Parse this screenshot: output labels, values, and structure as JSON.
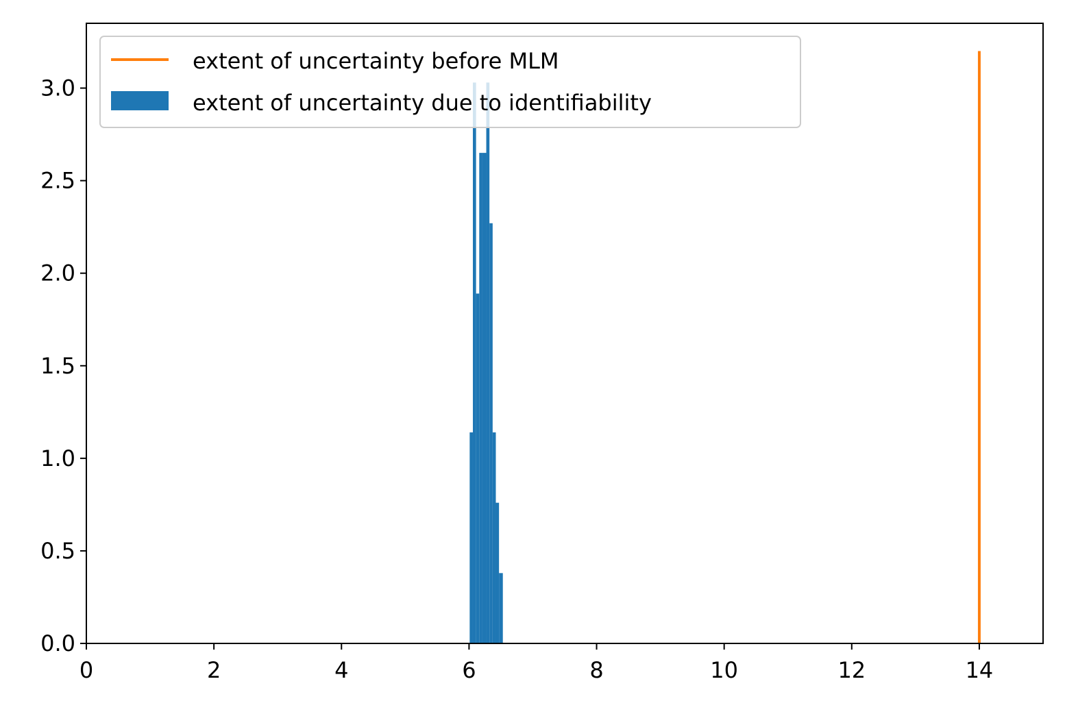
{
  "chart_data": {
    "type": "bar",
    "title": "",
    "xlabel": "",
    "ylabel": "",
    "xlim": [
      0,
      15
    ],
    "ylim": [
      0,
      3.35
    ],
    "grid": false,
    "legend_placement": "upper-left",
    "x_ticks": [
      0,
      2,
      4,
      6,
      8,
      10,
      12,
      14
    ],
    "x_tick_labels": [
      "0",
      "2",
      "4",
      "6",
      "8",
      "10",
      "12",
      "14"
    ],
    "y_ticks": [
      0,
      0.5,
      1.0,
      1.5,
      2.0,
      2.5,
      3.0
    ],
    "y_tick_labels": [
      "0.0",
      "0.5",
      "1.0",
      "1.5",
      "2.0",
      "2.5",
      "3.0"
    ],
    "series": [
      {
        "name": "extent of uncertainty before MLM",
        "kind": "vertical-line",
        "color": "#ff7f0e",
        "x": 14.0,
        "y_range": [
          0,
          3.2
        ]
      },
      {
        "name": "extent of uncertainty due to identifiability",
        "kind": "histogram",
        "color": "#1f77b4",
        "bins": [
          {
            "x0": 6.01,
            "x1": 6.06,
            "value": 1.14
          },
          {
            "x0": 6.06,
            "x1": 6.11,
            "value": 3.03
          },
          {
            "x0": 6.11,
            "x1": 6.16,
            "value": 1.89
          },
          {
            "x0": 6.16,
            "x1": 6.21,
            "value": 2.65
          },
          {
            "x0": 6.21,
            "x1": 6.27,
            "value": 2.65
          },
          {
            "x0": 6.27,
            "x1": 6.32,
            "value": 3.03
          },
          {
            "x0": 6.32,
            "x1": 6.37,
            "value": 2.27
          },
          {
            "x0": 6.37,
            "x1": 6.42,
            "value": 1.14
          },
          {
            "x0": 6.42,
            "x1": 6.47,
            "value": 0.76
          },
          {
            "x0": 6.47,
            "x1": 6.53,
            "value": 0.38
          }
        ]
      }
    ]
  }
}
